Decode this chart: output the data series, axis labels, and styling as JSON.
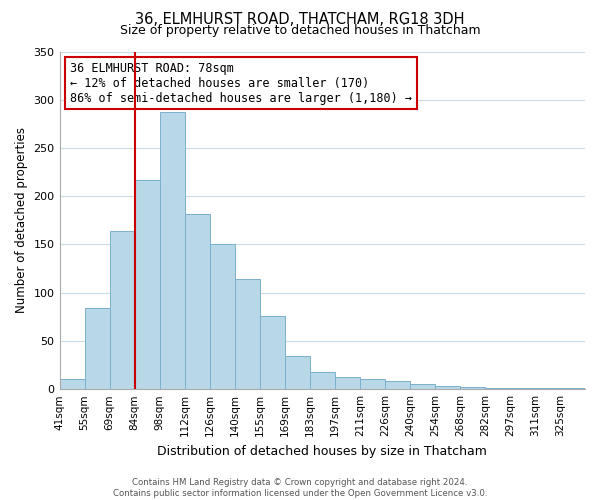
{
  "title": "36, ELMHURST ROAD, THATCHAM, RG18 3DH",
  "subtitle": "Size of property relative to detached houses in Thatcham",
  "xlabel": "Distribution of detached houses by size in Thatcham",
  "ylabel": "Number of detached properties",
  "bin_labels": [
    "41sqm",
    "55sqm",
    "69sqm",
    "84sqm",
    "98sqm",
    "112sqm",
    "126sqm",
    "140sqm",
    "155sqm",
    "169sqm",
    "183sqm",
    "197sqm",
    "211sqm",
    "226sqm",
    "240sqm",
    "254sqm",
    "268sqm",
    "282sqm",
    "297sqm",
    "311sqm",
    "325sqm"
  ],
  "bar_heights": [
    11,
    84,
    164,
    217,
    287,
    182,
    150,
    114,
    76,
    34,
    18,
    13,
    11,
    8,
    5,
    3,
    2,
    1,
    1,
    1,
    1
  ],
  "bar_color": "#b8d8e8",
  "bar_edge_color": "#7ab0cc",
  "vline_x_bin_index": 3,
  "annotation_title": "36 ELMHURST ROAD: 78sqm",
  "annotation_line1": "← 12% of detached houses are smaller (170)",
  "annotation_line2": "86% of semi-detached houses are larger (1,180) →",
  "annotation_box_color": "#ffffff",
  "annotation_box_edge_color": "#cc0000",
  "vline_color": "#cc0000",
  "ylim": [
    0,
    350
  ],
  "yticks": [
    0,
    50,
    100,
    150,
    200,
    250,
    300,
    350
  ],
  "footer_line1": "Contains HM Land Registry data © Crown copyright and database right 2024.",
  "footer_line2": "Contains public sector information licensed under the Open Government Licence v3.0.",
  "bg_color": "#ffffff",
  "grid_color": "#c8dce8"
}
